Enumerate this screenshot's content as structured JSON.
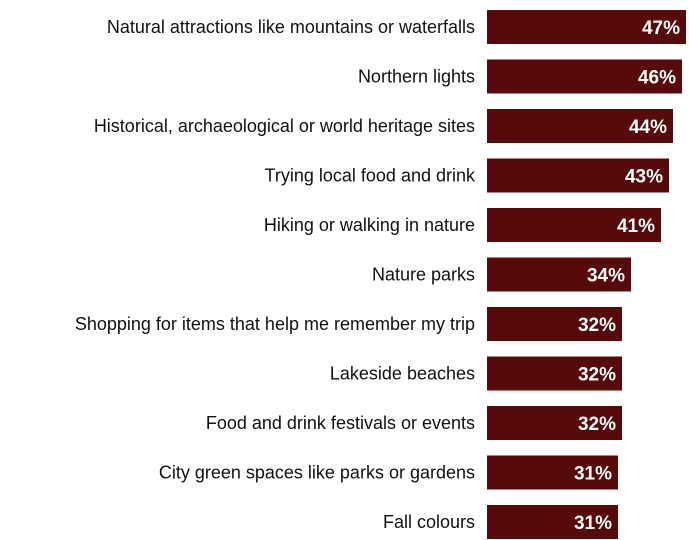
{
  "chart_data": {
    "type": "bar",
    "orientation": "horizontal",
    "categories": [
      "Natural attractions like mountains or waterfalls",
      "Northern lights",
      "Historical, archaeological or world heritage sites",
      "Trying local food and drink",
      "Hiking or walking in nature",
      "Nature parks",
      "Shopping for items that help me remember my trip",
      "Lakeside beaches",
      "Food and drink festivals or events",
      "City green spaces like parks or gardens",
      "Fall colours"
    ],
    "values": [
      47,
      46,
      44,
      43,
      41,
      34,
      32,
      32,
      32,
      31,
      31
    ],
    "value_labels": [
      "47%",
      "46%",
      "44%",
      "43%",
      "41%",
      "34%",
      "32%",
      "32%",
      "32%",
      "31%",
      "31%"
    ],
    "xlim": [
      0,
      47
    ],
    "grid": false,
    "legend": "none",
    "bar_color": "#560a0a",
    "label_color": "#ffffff",
    "category_color": "#111111"
  }
}
